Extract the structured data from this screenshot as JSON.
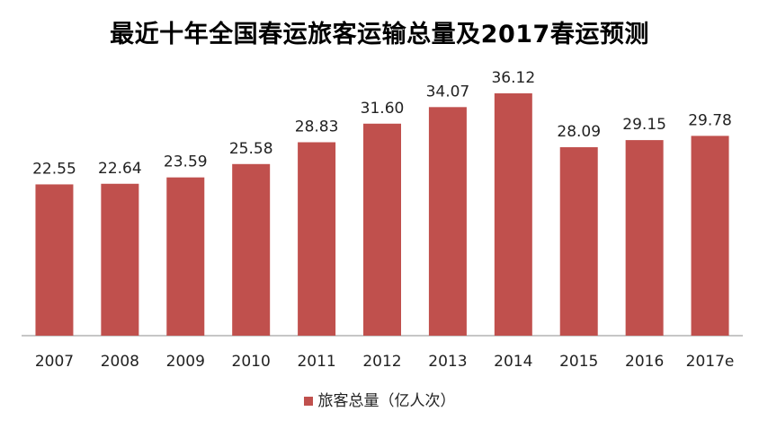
{
  "chart_data": {
    "type": "bar",
    "title": "最近十年全国春运旅客运输总量及2017春运预测",
    "categories": [
      "2007",
      "2008",
      "2009",
      "2010",
      "2011",
      "2012",
      "2013",
      "2014",
      "2015",
      "2016",
      "2017e"
    ],
    "series": [
      {
        "name": "旅客总量（亿人次）",
        "values": [
          22.55,
          22.64,
          23.59,
          25.58,
          28.83,
          31.6,
          34.07,
          36.12,
          28.09,
          29.15,
          29.78
        ],
        "labels": [
          "22.55",
          "22.64",
          "23.59",
          "25.58",
          "28.83",
          "31.60",
          "34.07",
          "36.12",
          "28.09",
          "29.15",
          "29.78"
        ]
      }
    ],
    "ylim": [
      0,
      40
    ],
    "grid": false,
    "legend_position": "bottom",
    "colors": {
      "bar": "#C0504D",
      "axis": "#8C8C8C",
      "text": "#222222"
    }
  }
}
